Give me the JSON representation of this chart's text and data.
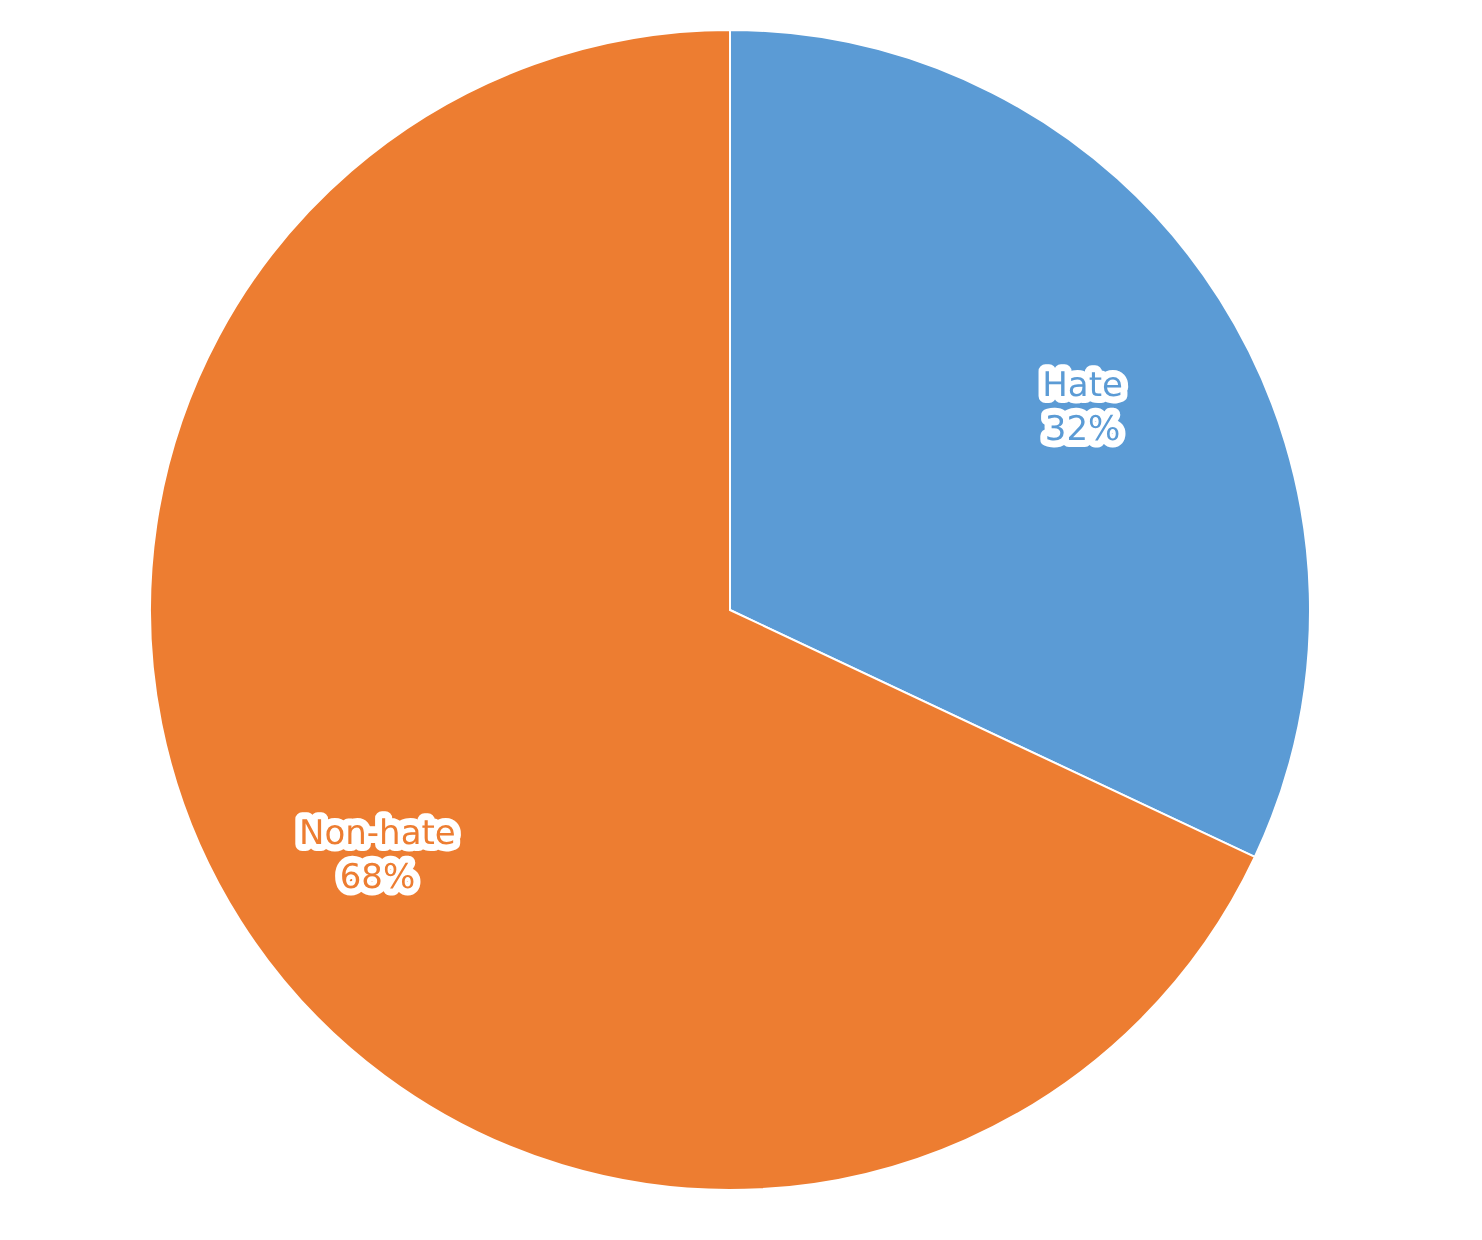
{
  "chart_data": {
    "type": "pie",
    "categories": [
      "Hate",
      "Non-hate"
    ],
    "values": [
      32,
      68
    ],
    "colors": [
      "#5b9bd5",
      "#ed7d31"
    ],
    "value_labels": [
      "32%",
      "68%"
    ],
    "legend": false
  }
}
